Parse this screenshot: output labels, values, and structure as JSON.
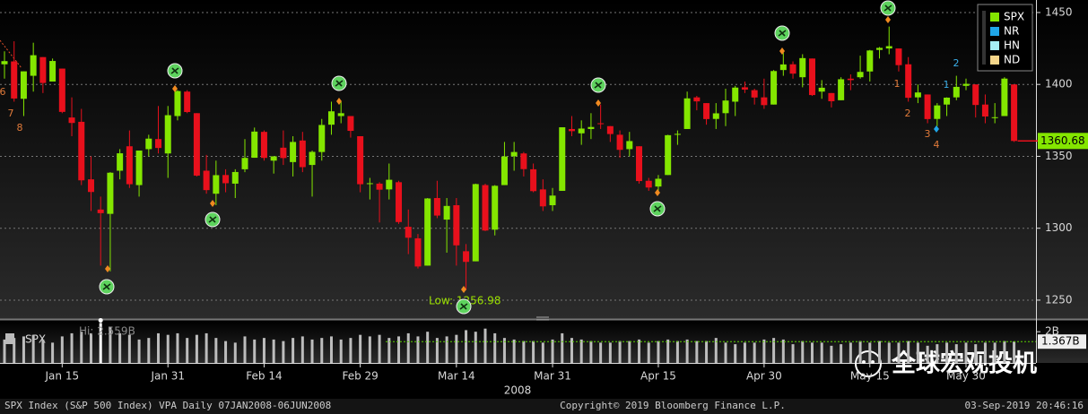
{
  "chart_data": {
    "type": "candlestick",
    "series": [
      {
        "name": "SPX",
        "color": "#84e600",
        "down_color": "#e8101c",
        "open": [
          1414,
          1416,
          1390,
          1406,
          1419,
          1402,
          1411,
          1377,
          1374,
          1334,
          1313,
          1310,
          1340,
          1357,
          1330,
          1355,
          1362,
          1352,
          1378,
          1395,
          1380,
          1340,
          1324,
          1337,
          1331,
          1341,
          1349,
          1367,
          1347,
          1356,
          1346,
          1361,
          1344,
          1353,
          1372,
          1378,
          1378,
          1364,
          1331,
          1331,
          1327,
          1332,
          1301,
          1293,
          1274,
          1321,
          1306,
          1316,
          1284,
          1277,
          1330,
          1299,
          1330,
          1350,
          1352,
          1341,
          1327,
          1316,
          1326,
          1369,
          1366,
          1369,
          1373,
          1371,
          1365,
          1355,
          1357,
          1333,
          1329,
          1337,
          1365,
          1369,
          1391,
          1387,
          1376,
          1380,
          1388,
          1398,
          1396,
          1391,
          1386,
          1410,
          1414,
          1405,
          1418,
          1395,
          1394,
          1389,
          1404,
          1405,
          1409,
          1424,
          1425,
          1425,
          1414,
          1391,
          1393,
          1376,
          1386,
          1391,
          1399,
          1400,
          1386,
          1377,
          1378,
          1400
        ],
        "high": [
          1423,
          1430,
          1409,
          1429,
          1419,
          1418,
          1411,
          1391,
          1383,
          1350,
          1322,
          1339,
          1355,
          1368,
          1354,
          1365,
          1385,
          1385,
          1396,
          1396,
          1380,
          1351,
          1347,
          1341,
          1341,
          1362,
          1370,
          1368,
          1350,
          1368,
          1364,
          1367,
          1354,
          1376,
          1388,
          1388,
          1378,
          1364,
          1335,
          1332,
          1345,
          1333,
          1313,
          1296,
          1321,
          1333,
          1321,
          1321,
          1289,
          1331,
          1331,
          1330,
          1360,
          1360,
          1353,
          1345,
          1334,
          1328,
          1370,
          1378,
          1375,
          1380,
          1386,
          1371,
          1368,
          1367,
          1357,
          1335,
          1337,
          1365,
          1368,
          1395,
          1392,
          1387,
          1387,
          1397,
          1399,
          1402,
          1397,
          1404,
          1410,
          1422,
          1416,
          1421,
          1418,
          1403,
          1394,
          1405,
          1407,
          1420,
          1424,
          1426,
          1440.24,
          1425,
          1419,
          1400,
          1393,
          1387,
          1391,
          1406,
          1404,
          1400,
          1393,
          1387,
          1405,
          1400
        ],
        "low": [
          1404,
          1388,
          1378,
          1395,
          1394,
          1402,
          1380,
          1364,
          1330,
          1312,
          1274,
          1270,
          1334,
          1328,
          1322,
          1350,
          1352,
          1335,
          1375,
          1380,
          1336,
          1324,
          1316,
          1325,
          1321,
          1339,
          1349,
          1347,
          1338,
          1344,
          1336,
          1339,
          1322,
          1347,
          1365,
          1373,
          1363,
          1325,
          1320,
          1304,
          1320,
          1303,
          1282,
          1272,
          1274,
          1307,
          1283,
          1274,
          1256.98,
          1277,
          1298,
          1295,
          1330,
          1340,
          1336,
          1325,
          1312,
          1312,
          1326,
          1364,
          1358,
          1362,
          1369,
          1360,
          1349,
          1350,
          1331,
          1326,
          1324,
          1337,
          1358,
          1369,
          1382,
          1372,
          1369,
          1371,
          1378,
          1394,
          1386,
          1383,
          1386,
          1406,
          1404,
          1398,
          1392,
          1390,
          1384,
          1389,
          1396,
          1404,
          1402,
          1418,
          1421,
          1409,
          1388,
          1387,
          1373,
          1371,
          1378,
          1389,
          1396,
          1377,
          1373,
          1373,
          1378,
          1360
        ],
        "close": [
          1416.2,
          1390.2,
          1409.1,
          1420.3,
          1401.0,
          1416.3,
          1380.9,
          1373.2,
          1333.3,
          1325.2,
          1310.5,
          1338.6,
          1352.1,
          1330.6,
          1354.0,
          1362.3,
          1355.8,
          1378.6,
          1395.4,
          1380.8,
          1336.6,
          1326.5,
          1336.9,
          1331.3,
          1339.1,
          1348.9,
          1367.2,
          1348.9,
          1350.0,
          1348.8,
          1360.0,
          1342.5,
          1353.1,
          1371.8,
          1381.3,
          1380.0,
          1367.7,
          1330.6,
          1331.3,
          1326.8,
          1333.7,
          1304.3,
          1293.4,
          1273.4,
          1320.7,
          1308.8,
          1315.5,
          1288.1,
          1276.6,
          1330.7,
          1298.4,
          1329.5,
          1349.9,
          1353.0,
          1341.1,
          1325.8,
          1315.2,
          1322.7,
          1370.2,
          1367.5,
          1369.3,
          1370.4,
          1372.5,
          1365.5,
          1354.5,
          1360.6,
          1332.8,
          1328.3,
          1334.4,
          1364.7,
          1365.6,
          1390.3,
          1388.2,
          1375.9,
          1379.9,
          1388.8,
          1397.8,
          1396.4,
          1390.9,
          1385.6,
          1409.3,
          1413.9,
          1407.5,
          1418.3,
          1392.6,
          1397.7,
          1388.3,
          1403.6,
          1403.0,
          1408.7,
          1423.6,
          1425.4,
          1426.6,
          1413.4,
          1390.7,
          1394.4,
          1375.9,
          1385.4,
          1390.8,
          1398.3,
          1400.4,
          1385.7,
          1377.7,
          1377.2,
          1404.05,
          1360.68
        ]
      },
      {
        "name": "NR",
        "color": "#1fa6e8"
      },
      {
        "name": "HN",
        "color": "#a6eef5"
      },
      {
        "name": "ND",
        "color": "#f5d68a"
      }
    ],
    "categories": [
      null,
      null,
      null,
      null,
      null,
      null,
      "Jan 15",
      null,
      null,
      null,
      null,
      null,
      null,
      null,
      null,
      null,
      null,
      "Jan 31",
      null,
      null,
      null,
      null,
      null,
      null,
      null,
      null,
      null,
      "Feb 14",
      null,
      null,
      null,
      null,
      null,
      null,
      null,
      null,
      null,
      "Feb 29",
      null,
      null,
      null,
      null,
      null,
      null,
      null,
      null,
      null,
      "Mar 14",
      null,
      null,
      null,
      null,
      null,
      null,
      null,
      null,
      null,
      "Mar 31",
      null,
      null,
      null,
      null,
      null,
      null,
      null,
      null,
      null,
      null,
      "Apr 15",
      null,
      null,
      null,
      null,
      null,
      null,
      null,
      null,
      null,
      null,
      "Apr 30",
      null,
      null,
      null,
      null,
      null,
      null,
      null,
      null,
      null,
      null,
      "May 15",
      null,
      null,
      null,
      null,
      null,
      null,
      null,
      null,
      null,
      "May 30",
      null,
      null,
      null,
      null,
      null
    ],
    "year_label": "2008",
    "ylim": [
      1237.5,
      1458.7
    ],
    "yticks": [
      1250,
      1300,
      1350,
      1400,
      1450
    ],
    "grid": true,
    "legend": "top-right",
    "low_label": "Low: 1256.98",
    "annotations": [
      "6",
      "7",
      "8",
      "1",
      "2",
      "3",
      "4",
      "1",
      "2"
    ],
    "volume": {
      "type": "bar",
      "color": "#bdbdbd",
      "values": [
        1.5,
        1.6,
        1.7,
        1.8,
        1.5,
        1.3,
        1.7,
        1.9,
        2.0,
        1.9,
        2.559,
        2.3,
        1.9,
        1.8,
        1.5,
        1.6,
        1.9,
        1.8,
        1.9,
        1.6,
        1.8,
        1.9,
        1.6,
        1.4,
        1.3,
        1.7,
        1.5,
        1.6,
        1.5,
        1.4,
        1.6,
        1.7,
        1.5,
        1.6,
        1.7,
        1.5,
        1.6,
        1.8,
        1.7,
        1.8,
        1.6,
        1.7,
        1.9,
        1.7,
        2.0,
        1.6,
        1.7,
        1.8,
        2.1,
        2.0,
        2.2,
        1.9,
        1.6,
        1.5,
        1.4,
        1.4,
        1.3,
        1.5,
        1.9,
        1.6,
        1.5,
        1.4,
        1.3,
        1.3,
        1.4,
        1.4,
        1.5,
        1.3,
        1.4,
        1.5,
        1.4,
        1.5,
        1.4,
        1.4,
        1.6,
        1.3,
        1.2,
        1.3,
        1.3,
        1.5,
        1.6,
        1.5,
        1.2,
        1.4,
        1.3,
        1.3,
        1.1,
        1.2,
        1.3,
        1.4,
        1.3,
        1.4,
        1.3,
        1.3,
        1.4,
        1.3,
        1.1,
        1.2,
        1.3,
        1.2,
        1.3,
        1.2,
        1.3,
        1.3,
        1.4,
        1.367
      ],
      "ylim": [
        0,
        2.7
      ],
      "yticks": [
        {
          "value": 2,
          "label": "2B"
        }
      ],
      "high_label": "Hi: 2.559B",
      "last_label": "1.367B"
    }
  },
  "watermark": "全球宏观投机",
  "footer": {
    "left": "SPX Index (S&P 500 Index) VPA  Daily 07JAN2008-06JUN2008",
    "center": "Copyright© 2019 Bloomberg Finance L.P.",
    "right": "03-Sep-2019 20:46:16"
  }
}
